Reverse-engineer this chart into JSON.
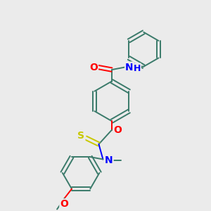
{
  "bg_color": "#ebebeb",
  "bond_color": "#3a7a6a",
  "atom_colors": {
    "O": "#ff0000",
    "N": "#0000ff",
    "S": "#c8c800",
    "C": "#3a7a6a"
  },
  "figsize": [
    3.0,
    3.0
  ],
  "dpi": 100
}
